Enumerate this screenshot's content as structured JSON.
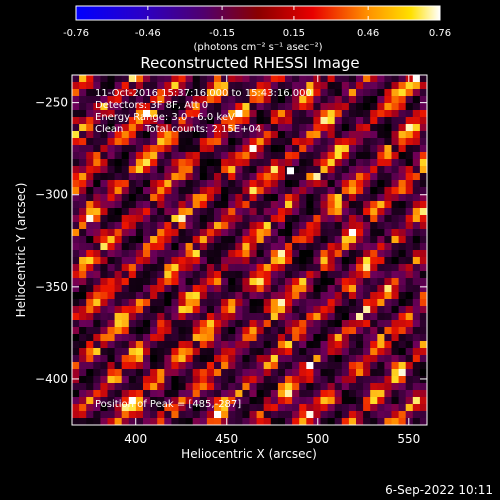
{
  "chart_data": {
    "type": "heatmap",
    "title": "Reconstructed RHESSI Image",
    "colorbar": {
      "min": -0.76,
      "max": 0.76,
      "tick_labels": [
        "-0.76",
        "-0.46",
        "-0.15",
        "0.15",
        "0.46",
        "0.76"
      ],
      "tick_values": [
        -0.76,
        -0.46,
        -0.15,
        0.15,
        0.46,
        0.76
      ],
      "unit_label": "(photons cm⁻² s⁻¹ asec⁻²)",
      "colormap": "blue-purple-red-orange-yellow-white"
    },
    "xlabel": "Heliocentric X (arcsec)",
    "ylabel": "Heliocentric Y (arcsec)",
    "xlim": [
      365,
      560
    ],
    "ylim": [
      -425,
      -235
    ],
    "xticks": [
      400,
      450,
      500,
      550
    ],
    "xtick_labels": [
      "400",
      "450",
      "500",
      "550"
    ],
    "yticks": [
      -250,
      -300,
      -350,
      -400
    ],
    "ytick_labels": [
      "−250",
      "−300",
      "−350",
      "−400"
    ],
    "annotations": [
      "11-Oct-2016 15:37:16.000 to 15:43:16.000",
      "Detectors: 3F 8F, Att 0",
      "Energy Range: 3.0 - 6.0 keV",
      "Clean",
      "Total counts: 2.15E+04",
      "Position of Peak = [485,-287]"
    ],
    "peak": {
      "x": 485,
      "y": -287
    },
    "grid": false
  },
  "footer": {
    "date_label": "6-Sep-2022 10:11"
  }
}
